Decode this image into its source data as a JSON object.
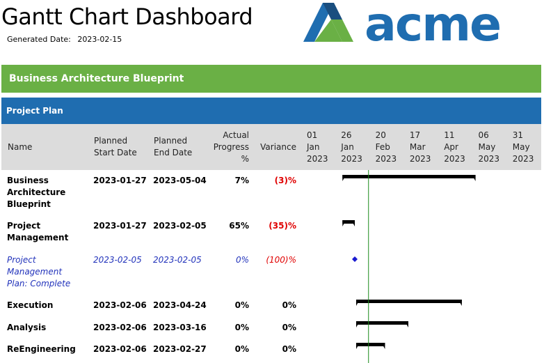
{
  "header": {
    "title": "Gantt Chart Dashboard",
    "generated_label": "Generated Date:",
    "generated_value": "2023-02-15"
  },
  "logo": {
    "text": "acme",
    "colors": [
      "#1f6db0",
      "#6ab045",
      "#1a4e7f"
    ]
  },
  "banner": {
    "project_title": "Business Architecture Blueprint"
  },
  "plan": {
    "title": "Project Plan"
  },
  "columns": {
    "name": "Name",
    "start": "Planned\nStart Date",
    "end": "Planned\nEnd Date",
    "progress": "Actual\nProgress\n%",
    "variance": "Variance"
  },
  "timeline": {
    "ticks": [
      "01\nJan\n2023",
      "26\nJan\n2023",
      "20\nFeb\n2023",
      "17\nMar\n2023",
      "11\nApr\n2023",
      "06\nMay\n2023",
      "31\nMay\n2023"
    ],
    "tick_dates": [
      "2023-01-01",
      "2023-01-26",
      "2023-02-20",
      "2023-03-17",
      "2023-04-11",
      "2023-05-06",
      "2023-05-31"
    ],
    "today": "2023-02-15",
    "today_color": "#1a8a1a",
    "bar_color": "#000000",
    "milestone_color": "#1a1ad0"
  },
  "rows": [
    {
      "name": "Business\nArchitecture\nBlueprint",
      "start": "2023-01-27",
      "end": "2023-05-04",
      "progress": "7%",
      "variance": "(3)%",
      "variance_negative": true,
      "style": "bold",
      "type": "summary"
    },
    {
      "name": "Project\nManagement",
      "start": "2023-01-27",
      "end": "2023-02-05",
      "progress": "65%",
      "variance": "(35)%",
      "variance_negative": true,
      "style": "bold",
      "type": "summary"
    },
    {
      "name": "Project\nManagement\nPlan: Complete",
      "start": "2023-02-05",
      "end": "2023-02-05",
      "progress": "0%",
      "variance": "(100)%",
      "variance_negative": true,
      "style": "detail",
      "type": "milestone"
    },
    {
      "name": "Execution",
      "start": "2023-02-06",
      "end": "2023-04-24",
      "progress": "0%",
      "variance": "0%",
      "variance_negative": false,
      "style": "bold",
      "type": "summary"
    },
    {
      "name": "Analysis",
      "start": "2023-02-06",
      "end": "2023-03-16",
      "progress": "0%",
      "variance": "0%",
      "variance_negative": false,
      "style": "bold",
      "type": "summary"
    },
    {
      "name": "ReEngineering",
      "start": "2023-02-06",
      "end": "2023-02-27",
      "progress": "0%",
      "variance": "0%",
      "variance_negative": false,
      "style": "bold",
      "type": "summary"
    }
  ]
}
